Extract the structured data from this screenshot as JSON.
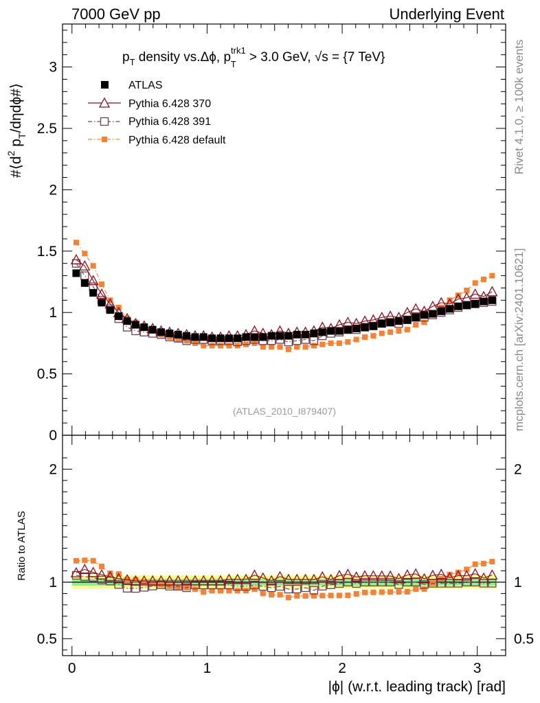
{
  "header": {
    "left": "7000 GeV pp",
    "right": "Underlying Event"
  },
  "side_labels": {
    "rivet": "Rivet 4.1.0, ≥ 100k events",
    "mcplots": "mcplots.cern.ch [arXiv:2401.10621]"
  },
  "plot": {
    "title": {
      "part1": "p",
      "sub1": "T",
      "part2": " density vs.Δϕ, p",
      "sup2": "trk1",
      "sub2": "T",
      "part3": " > 3.0 GeV, ",
      "sqrt": "√",
      "part4": "s",
      "part5": " = {7 TeV}"
    },
    "ylabel": {
      "a": "#⟨d",
      "b": "2",
      "c": " p",
      "d": "T",
      "e": "/dηdϕ#⟩"
    },
    "ratio_ylabel": "Ratio to ATLAS",
    "xlabel": "|ϕ| (w.r.t. leading track) [rad]",
    "analysis": "(ATLAS_2010_I879407)"
  },
  "chart_data": {
    "type": "scatter",
    "main_ylim": [
      0,
      3.35
    ],
    "ratio_ylim": [
      0.35,
      2.3
    ],
    "xlim": [
      -0.07,
      3.21
    ],
    "x_ticks": [
      0,
      1,
      2,
      3
    ],
    "x_tick_labels": [
      "0",
      "1",
      "2",
      "3"
    ],
    "main_y_ticks": [
      0,
      0.5,
      1,
      1.5,
      2,
      2.5,
      3
    ],
    "main_y_tick_labels": [
      "0",
      "0.5",
      "1",
      "1.5",
      "2",
      "2.5",
      "3"
    ],
    "ratio_y_ticks": [
      0.5,
      1,
      2
    ],
    "ratio_y_tick_labels": [
      "0.5",
      "1",
      "2"
    ],
    "x": [
      0.0314,
      0.0942,
      0.157,
      0.2199,
      0.2827,
      0.3456,
      0.4084,
      0.4712,
      0.5341,
      0.5969,
      0.6597,
      0.7226,
      0.7854,
      0.8482,
      0.9111,
      0.9739,
      1.0367,
      1.0996,
      1.1624,
      1.2252,
      1.2881,
      1.3509,
      1.4137,
      1.4765,
      1.5394,
      1.6022,
      1.665,
      1.7279,
      1.7907,
      1.8535,
      1.9164,
      1.9792,
      2.042,
      2.1049,
      2.1677,
      2.2305,
      2.2934,
      2.3562,
      2.419,
      2.4819,
      2.5447,
      2.6075,
      2.6704,
      2.7332,
      2.796,
      2.8588,
      2.9217,
      2.9845,
      3.0473,
      3.1102
    ],
    "series": [
      {
        "name": "ATLAS",
        "color": "#000000",
        "marker": "filled-square",
        "values": [
          1.32,
          1.24,
          1.16,
          1.08,
          1.02,
          0.97,
          0.93,
          0.9,
          0.88,
          0.86,
          0.84,
          0.83,
          0.82,
          0.81,
          0.8,
          0.8,
          0.79,
          0.79,
          0.79,
          0.79,
          0.8,
          0.8,
          0.8,
          0.81,
          0.81,
          0.81,
          0.82,
          0.82,
          0.83,
          0.84,
          0.85,
          0.85,
          0.86,
          0.87,
          0.88,
          0.89,
          0.91,
          0.92,
          0.93,
          0.94,
          0.96,
          0.98,
          0.99,
          1.01,
          1.03,
          1.05,
          1.06,
          1.07,
          1.09,
          1.1
        ]
      },
      {
        "name": "Pythia 6.428 370",
        "color": "#8b0f1e",
        "marker": "open-triangle",
        "values": [
          1.43,
          1.38,
          1.26,
          1.15,
          1.07,
          1.0,
          0.95,
          0.91,
          0.89,
          0.87,
          0.85,
          0.84,
          0.83,
          0.82,
          0.81,
          0.81,
          0.8,
          0.8,
          0.81,
          0.81,
          0.82,
          0.85,
          0.83,
          0.82,
          0.85,
          0.83,
          0.84,
          0.84,
          0.85,
          0.88,
          0.87,
          0.9,
          0.92,
          0.91,
          0.93,
          0.94,
          0.96,
          0.97,
          0.96,
          1.0,
          1.03,
          1.01,
          1.05,
          1.08,
          1.07,
          1.11,
          1.12,
          1.15,
          1.13,
          1.17
        ]
      },
      {
        "name": "Pythia 6.428 391",
        "color": "#6e3f50",
        "marker": "open-square",
        "values": [
          1.4,
          1.3,
          1.21,
          1.1,
          1.03,
          0.95,
          0.88,
          0.85,
          0.84,
          0.83,
          0.82,
          0.8,
          0.79,
          0.77,
          0.78,
          0.78,
          0.77,
          0.77,
          0.77,
          0.76,
          0.77,
          0.78,
          0.77,
          0.77,
          0.78,
          0.76,
          0.77,
          0.78,
          0.77,
          0.81,
          0.83,
          0.84,
          0.86,
          0.86,
          0.88,
          0.89,
          0.91,
          0.92,
          0.91,
          0.94,
          0.96,
          0.96,
          0.98,
          1.0,
          1.02,
          1.04,
          1.06,
          1.07,
          1.08,
          1.09
        ]
      },
      {
        "name": "Pythia 6.428 default",
        "color": "#f58232",
        "marker": "filled-small-square",
        "values": [
          1.57,
          1.48,
          1.38,
          1.23,
          1.1,
          1.04,
          0.95,
          0.92,
          0.88,
          0.85,
          0.82,
          0.8,
          0.78,
          0.77,
          0.75,
          0.73,
          0.73,
          0.73,
          0.73,
          0.73,
          0.74,
          0.75,
          0.72,
          0.72,
          0.72,
          0.7,
          0.72,
          0.72,
          0.73,
          0.74,
          0.75,
          0.75,
          0.76,
          0.78,
          0.8,
          0.81,
          0.83,
          0.84,
          0.85,
          0.86,
          0.9,
          0.92,
          0.98,
          1.04,
          1.1,
          1.14,
          1.18,
          1.24,
          1.27,
          1.3
        ]
      }
    ],
    "ratio_band": {
      "inner_half_width": 0.03,
      "outer_half_width": 0.06,
      "inner_color": "#90ee90",
      "outer_color": "#fffb8f"
    }
  }
}
